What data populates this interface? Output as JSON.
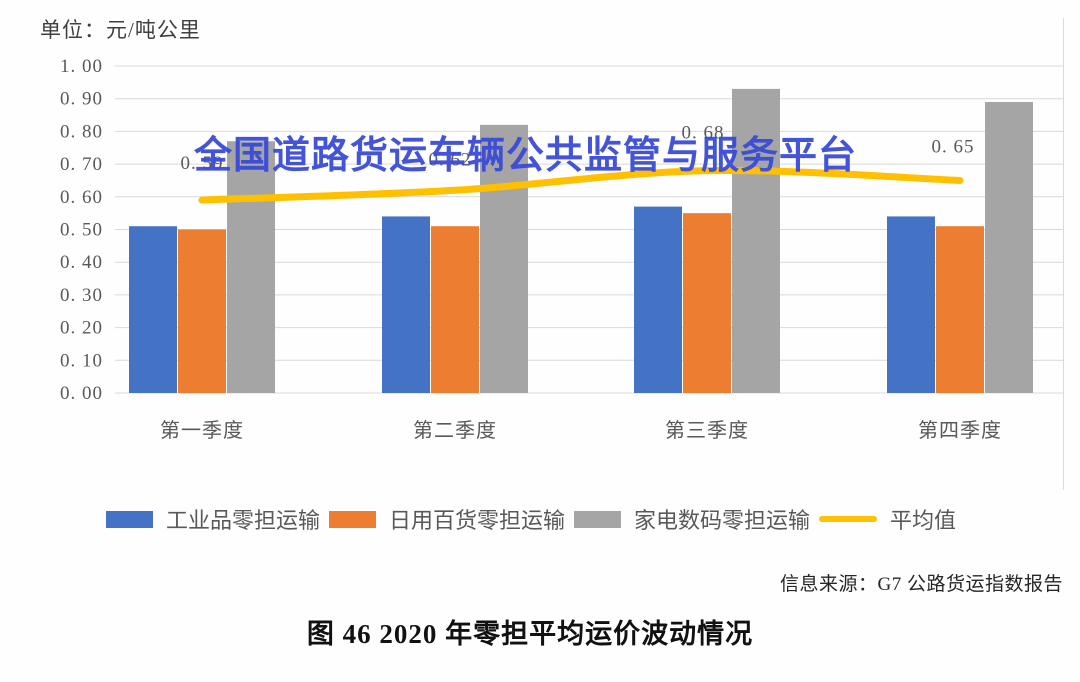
{
  "unit_label": "单位：元/吨公里",
  "watermark": {
    "text": "全国道路货运车辆公共监管与服务平台",
    "color": "#3A4BD8"
  },
  "source_note": "信息来源：G7 公路货运指数报告",
  "caption": "图 46 2020 年零担平均运价波动情况",
  "chart_data": {
    "type": "bar",
    "title": "图 46 2020 年零担平均运价波动情况",
    "unit": "元/吨公里",
    "categories": [
      "第一季度",
      "第二季度",
      "第三季度",
      "第四季度"
    ],
    "series": [
      {
        "name": "工业品零担运输",
        "type": "bar",
        "color": "#4472C4",
        "values": [
          0.51,
          0.54,
          0.57,
          0.54
        ]
      },
      {
        "name": "日用百货零担运输",
        "type": "bar",
        "color": "#ED7D31",
        "values": [
          0.5,
          0.51,
          0.55,
          0.51
        ]
      },
      {
        "name": "家电数码零担运输",
        "type": "bar",
        "color": "#A5A5A5",
        "values": [
          0.77,
          0.82,
          0.93,
          0.89
        ]
      },
      {
        "name": "平均值",
        "type": "line",
        "color": "#FFC000",
        "values": [
          0.59,
          0.62,
          0.68,
          0.65
        ],
        "point_labels": [
          "0. 59",
          "0. 62",
          "0. 68",
          "0. 65"
        ]
      }
    ],
    "ylim": [
      0.0,
      1.0
    ],
    "y_ticks": [
      "0. 00",
      "0. 10",
      "0. 20",
      "0. 30",
      "0. 40",
      "0. 50",
      "0. 60",
      "0. 70",
      "0. 80",
      "0. 90",
      "1. 00"
    ],
    "grid": true,
    "gridline_color": "#D9D9D9",
    "axis_text_color": "#595959",
    "legend_position": "bottom"
  }
}
